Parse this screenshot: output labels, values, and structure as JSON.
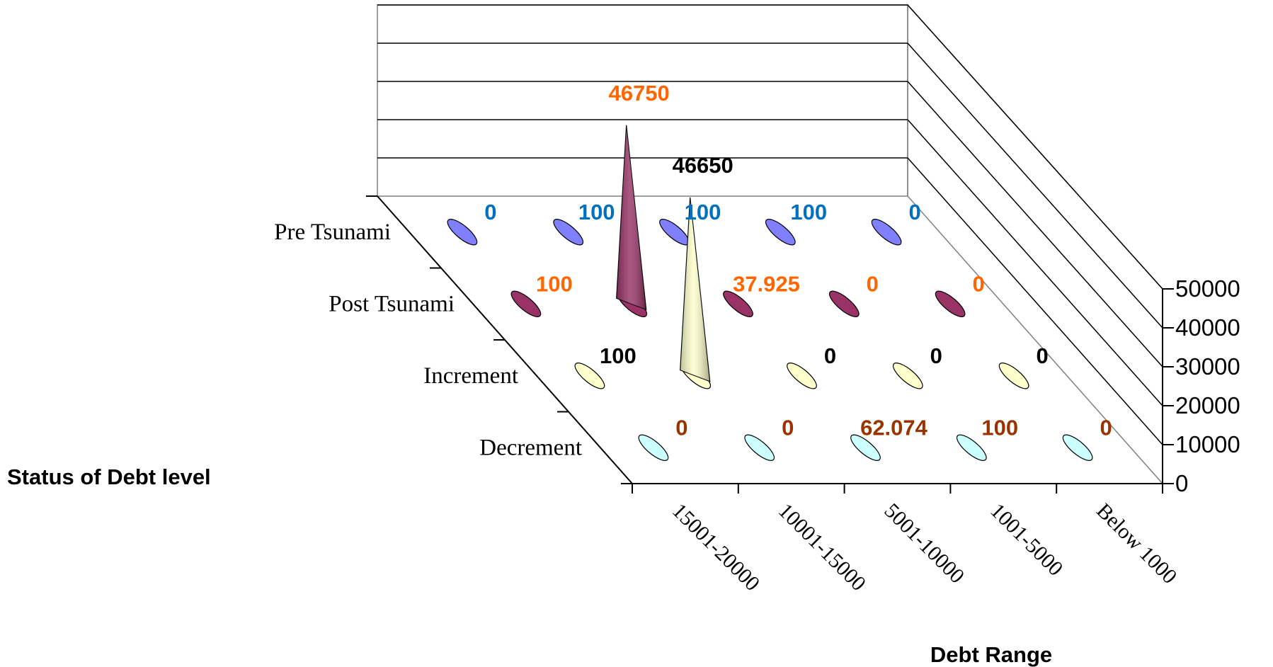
{
  "chart_data": {
    "type": "3d-cone",
    "categories": [
      "15001-20000",
      "10001-15000",
      "5001-10000",
      "1001-5000",
      "Below 1000"
    ],
    "series": [
      {
        "name": "Pre Tsunami",
        "values": [
          0,
          100,
          100,
          100,
          0
        ],
        "labels": [
          "0",
          "100",
          "100",
          "100",
          "0"
        ],
        "color": "#8080ff",
        "label_color": "#0070c0"
      },
      {
        "name": "Post Tsunami",
        "values": [
          100,
          46750,
          37.925,
          0,
          0
        ],
        "labels": [
          "100",
          "46750",
          "37.925",
          "0",
          "0"
        ],
        "color": "#993366",
        "label_color": "#ff6600"
      },
      {
        "name": "Increment",
        "values": [
          100,
          46650,
          0,
          0,
          0
        ],
        "labels": [
          "100",
          "46650",
          "0",
          "0",
          "0"
        ],
        "color": "#ffffcc",
        "label_color": "#000000"
      },
      {
        "name": "Decrement",
        "values": [
          0,
          0,
          62.074,
          100,
          0
        ],
        "labels": [
          "0",
          "0",
          "62.074",
          "100",
          "0"
        ],
        "color": "#ccffff",
        "label_color": "#993300"
      }
    ],
    "z_ticks": [
      "0",
      "10000",
      "20000",
      "30000",
      "40000",
      "50000"
    ],
    "zlim": [
      0,
      50000
    ],
    "xlabel": "Debt Range",
    "ylabel": "Status of Debt level",
    "gridlines": true,
    "legend": "none"
  }
}
